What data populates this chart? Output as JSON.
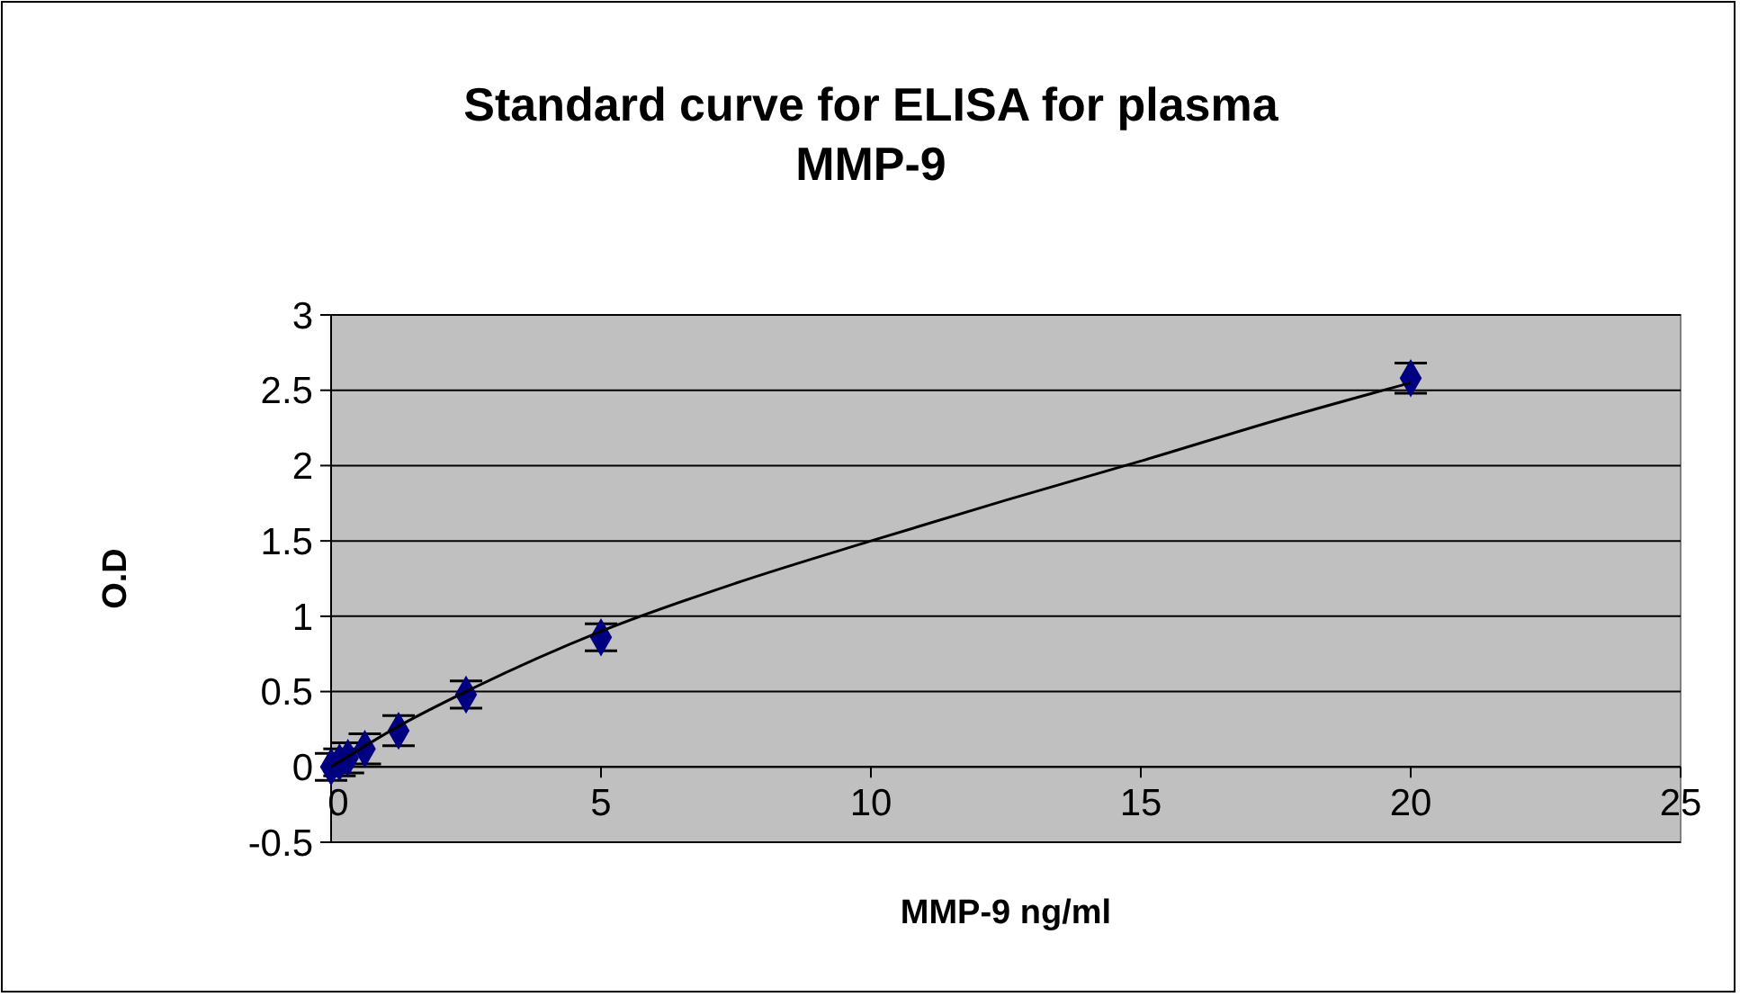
{
  "chart_data": {
    "type": "scatter",
    "title": "Standard curve for ELISA for plasma MMP-9",
    "xlabel": "MMP-9 ng/ml",
    "ylabel": "O.D",
    "series": [
      {
        "color": "#000080",
        "x": [
          0,
          0.156,
          0.3125,
          0.625,
          1.25,
          2.5,
          5,
          20
        ],
        "values": [
          0,
          0.03,
          0.06,
          0.12,
          0.24,
          0.48,
          0.86,
          2.58
        ],
        "errors": [
          0.09,
          0.09,
          0.1,
          0.1,
          0.1,
          0.09,
          0.09,
          0.1
        ],
        "marker": "diamond"
      },
      {
        "type": "line",
        "color": "#000000",
        "x": [
          0,
          1.25,
          2.5,
          5,
          7.5,
          10,
          12.5,
          15,
          17.5,
          20
        ],
        "values": [
          0,
          0.27,
          0.5,
          0.9,
          1.22,
          1.5,
          1.77,
          2.03,
          2.3,
          2.55
        ],
        "marker": "none",
        "line_style": "solid"
      }
    ],
    "xlim": [
      0,
      25
    ],
    "xticks": [
      0,
      5,
      10,
      15,
      20,
      25
    ],
    "ylim": [
      -0.5,
      3
    ],
    "yticks": [
      -0.5,
      0,
      0.5,
      1,
      1.5,
      2,
      2.5,
      3
    ],
    "grid": "y"
  }
}
